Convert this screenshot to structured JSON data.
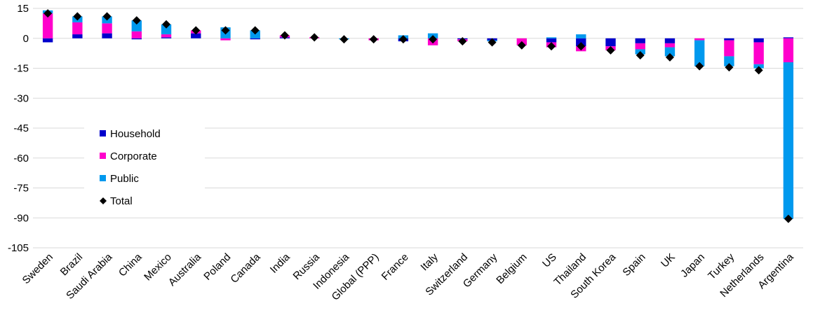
{
  "chart_data": {
    "type": "bar",
    "stacked": true,
    "categories": [
      "Sweden",
      "Brazil",
      "Saudi Arabia",
      "China",
      "Mexico",
      "Australia",
      "Poland",
      "Canada",
      "India",
      "Russia",
      "Indonesia",
      "Global (PPP)",
      "France",
      "Italy",
      "Switzerland",
      "Germany",
      "Belgium",
      "US",
      "Thailand",
      "South Korea",
      "Spain",
      "UK",
      "Japan",
      "Turkey",
      "Netherlands",
      "Argentina"
    ],
    "series": [
      {
        "name": "Household",
        "color": "#0000CC",
        "values": [
          -2,
          2,
          2.5,
          -0.5,
          0.5,
          2.5,
          0,
          -0.5,
          0.5,
          0,
          0,
          0,
          -1.5,
          0,
          -0.5,
          -1,
          0,
          -2,
          -4,
          -4,
          -2.5,
          -2.5,
          0,
          -1,
          -2,
          0.5
        ]
      },
      {
        "name": "Corporate",
        "color": "#FF00CC",
        "values": [
          12.5,
          6,
          5,
          3.5,
          1.5,
          1.5,
          -1,
          0,
          1,
          0.5,
          0,
          -1,
          0,
          -3.5,
          -1,
          0,
          -3.5,
          -2.5,
          -2.5,
          -2,
          -3,
          -2,
          -1,
          -8,
          -11,
          -12
        ]
      },
      {
        "name": "Public",
        "color": "#0099EE",
        "values": [
          1.5,
          3,
          3.5,
          5.5,
          5,
          0,
          5.5,
          4,
          0,
          0,
          -0.5,
          0,
          1.5,
          2.5,
          0,
          -0.5,
          0,
          0.5,
          2,
          0,
          -2.5,
          -4.5,
          -13,
          -5,
          -2,
          -78.5
        ]
      },
      {
        "name": "Total",
        "type": "marker",
        "color": "#000000",
        "values": [
          12.5,
          11,
          11,
          9,
          7,
          4,
          4,
          4,
          1.5,
          0.5,
          -0.5,
          -0.5,
          -0.5,
          -0.5,
          -1.5,
          -2,
          -3.5,
          -4,
          -4,
          -6,
          -8.5,
          -9.5,
          -14,
          -14.5,
          -16,
          -90.5
        ]
      }
    ],
    "ylim": [
      -105,
      15
    ],
    "yticks": [
      15,
      0,
      -15,
      -30,
      -45,
      -60,
      -75,
      -90,
      -105
    ],
    "grid": true,
    "legend": "lower-left",
    "xlabel": "",
    "ylabel": "",
    "title": ""
  }
}
